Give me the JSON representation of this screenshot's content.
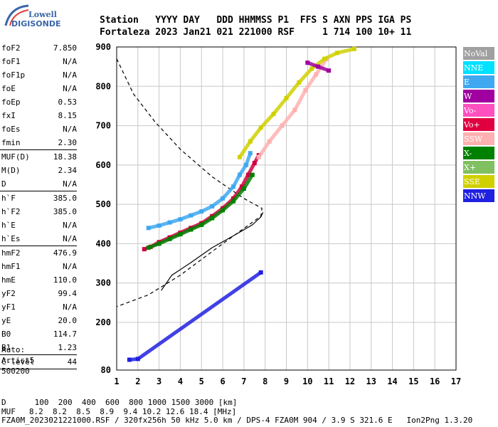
{
  "logo": {
    "line1": "Lowell",
    "line2": "DIGISONDE"
  },
  "header": {
    "row1": "Station   YYYY DAY   DDD HHMMSS P1  FFS S AXN PPS IGA PS",
    "row2": "Fortaleza 2023 Jan21 021 221000 RSF     1 714 100 10+ 11"
  },
  "params": [
    {
      "name": "foF2",
      "value": "7.850"
    },
    {
      "name": "foF1",
      "value": "N/A"
    },
    {
      "name": "foF1p",
      "value": "N/A"
    },
    {
      "name": "foE",
      "value": "N/A"
    },
    {
      "name": "foEp",
      "value": "0.53"
    },
    {
      "name": "fxI",
      "value": "8.15"
    },
    {
      "name": "foEs",
      "value": "N/A"
    },
    {
      "name": "fmin",
      "value": "2.30"
    },
    {
      "sep": true
    },
    {
      "name": "MUF(D)",
      "value": "18.38"
    },
    {
      "name": "M(D)",
      "value": "2.34"
    },
    {
      "name": "D",
      "value": "N/A"
    },
    {
      "sep": true
    },
    {
      "name": "h`F",
      "value": "385.0"
    },
    {
      "name": "h`F2",
      "value": "385.0"
    },
    {
      "name": "h`E",
      "value": "N/A"
    },
    {
      "name": "h`Es",
      "value": "N/A"
    },
    {
      "sep": true
    },
    {
      "name": "hmF2",
      "value": "476.9"
    },
    {
      "name": "hmF1",
      "value": "N/A"
    },
    {
      "name": "hmE",
      "value": "110.0"
    },
    {
      "name": "yF2",
      "value": "99.4"
    },
    {
      "name": "yF1",
      "value": "N/A"
    },
    {
      "name": "yE",
      "value": "20.0"
    },
    {
      "name": "B0",
      "value": "114.7"
    },
    {
      "name": "B1",
      "value": "1.23"
    },
    {
      "sep": true
    },
    {
      "name": "C-level",
      "value": "44"
    },
    {
      "sep": true
    }
  ],
  "auto": {
    "line1": "Auto:",
    "line2": "Artist5",
    "line3": "500200"
  },
  "legend": [
    {
      "label": "NoVal",
      "color": "#a0a0a0"
    },
    {
      "label": "NNE",
      "color": "#00e0ff"
    },
    {
      "label": "E",
      "color": "#40a8f0"
    },
    {
      "label": "W",
      "color": "#a000a0"
    },
    {
      "label": "Vo-",
      "color": "#ff50c0"
    },
    {
      "label": "Vo+",
      "color": "#e00040"
    },
    {
      "label": "SSW",
      "color": "#ffb0b0"
    },
    {
      "label": "X-",
      "color": "#008000"
    },
    {
      "label": "X+",
      "color": "#80c060"
    },
    {
      "label": "SSE",
      "color": "#d0d000"
    },
    {
      "label": "NNW",
      "color": "#2020e0"
    }
  ],
  "bottom": {
    "row_d_label": "D",
    "row_d_values": "100  200  400  600  800 1000 1500 3000 [km]",
    "row_muf_label": "MUF",
    "row_muf_values": "8.2  8.2  8.5  8.9  9.4 10.2 12.6 18.4 [MHz]",
    "footer": "FZA0M_2023021221000.RSF / 320fx256h 50 kHz 5.0 km / DPS-4 FZA0M 904 / 3.9 S 321.6 E   Ion2Png 1.3.20"
  },
  "chart_data": {
    "type": "scatter",
    "title": "",
    "xlabel": "",
    "ylabel": "",
    "xlim": [
      1,
      17
    ],
    "ylim": [
      80,
      900
    ],
    "x_ticks": [
      1,
      2,
      3,
      4,
      5,
      6,
      7,
      8,
      9,
      10,
      11,
      12,
      13,
      14,
      15,
      16,
      17
    ],
    "y_ticks": [
      80,
      200,
      300,
      400,
      500,
      600,
      700,
      800,
      900
    ],
    "grid": true,
    "legend_position": "right",
    "series": [
      {
        "name": "O-trace",
        "color": "#d00040",
        "points": [
          [
            2.3,
            386
          ],
          [
            2.6,
            392
          ],
          [
            3.0,
            404
          ],
          [
            3.5,
            416
          ],
          [
            4.0,
            428
          ],
          [
            4.5,
            440
          ],
          [
            5.0,
            452
          ],
          [
            5.5,
            470
          ],
          [
            6.0,
            490
          ],
          [
            6.5,
            515
          ],
          [
            6.9,
            545
          ],
          [
            7.2,
            575
          ],
          [
            7.5,
            605
          ],
          [
            7.7,
            625
          ]
        ]
      },
      {
        "name": "X-trace",
        "color": "#008000",
        "points": [
          [
            2.5,
            390
          ],
          [
            3.0,
            400
          ],
          [
            3.5,
            412
          ],
          [
            4.0,
            424
          ],
          [
            4.5,
            436
          ],
          [
            5.0,
            448
          ],
          [
            5.5,
            465
          ],
          [
            6.0,
            485
          ],
          [
            6.5,
            508
          ],
          [
            7.0,
            540
          ],
          [
            7.4,
            575
          ]
        ]
      },
      {
        "name": "E-trace",
        "color": "#40a8f0",
        "points": [
          [
            2.5,
            440
          ],
          [
            3.0,
            446
          ],
          [
            3.5,
            454
          ],
          [
            4.0,
            462
          ],
          [
            4.5,
            472
          ],
          [
            5.0,
            482
          ],
          [
            5.5,
            495
          ],
          [
            6.0,
            515
          ],
          [
            6.5,
            545
          ],
          [
            6.8,
            575
          ],
          [
            7.1,
            600
          ],
          [
            7.3,
            630
          ]
        ]
      },
      {
        "name": "SSW",
        "color": "#ffb0b0",
        "points": [
          [
            7.7,
            620
          ],
          [
            8.2,
            660
          ],
          [
            8.8,
            700
          ],
          [
            9.4,
            740
          ],
          [
            9.9,
            790
          ],
          [
            10.4,
            830
          ],
          [
            10.9,
            870
          ]
        ]
      },
      {
        "name": "SSE",
        "color": "#d0d000",
        "points": [
          [
            6.8,
            620
          ],
          [
            7.3,
            660
          ],
          [
            7.8,
            695
          ],
          [
            8.4,
            730
          ],
          [
            9.0,
            770
          ],
          [
            9.6,
            810
          ],
          [
            10.2,
            845
          ],
          [
            10.8,
            870
          ],
          [
            11.4,
            885
          ],
          [
            12.2,
            895
          ]
        ]
      },
      {
        "name": "W",
        "color": "#a000a0",
        "points": [
          [
            10.0,
            860
          ],
          [
            10.5,
            850
          ],
          [
            11.0,
            840
          ]
        ]
      },
      {
        "name": "NNW",
        "color": "#2020e0",
        "points": [
          [
            1.6,
            106
          ],
          [
            2.0,
            108
          ],
          [
            7.8,
            327
          ]
        ]
      }
    ],
    "profile": {
      "solid": [
        [
          3.1,
          281
        ],
        [
          3.6,
          320
        ],
        [
          4.5,
          352
        ],
        [
          5.5,
          390
        ],
        [
          6.5,
          420
        ],
        [
          7.4,
          448
        ],
        [
          7.8,
          468
        ],
        [
          7.9,
          480
        ]
      ],
      "dashed": [
        [
          1.0,
          870
        ],
        [
          1.8,
          780
        ],
        [
          2.8,
          710
        ],
        [
          4.0,
          640
        ],
        [
          5.5,
          570
        ],
        [
          7.0,
          515
        ],
        [
          7.85,
          490
        ],
        [
          7.8,
          470
        ],
        [
          6.0,
          400
        ],
        [
          4.0,
          320
        ],
        [
          2.5,
          270
        ],
        [
          1.0,
          240
        ]
      ]
    }
  }
}
